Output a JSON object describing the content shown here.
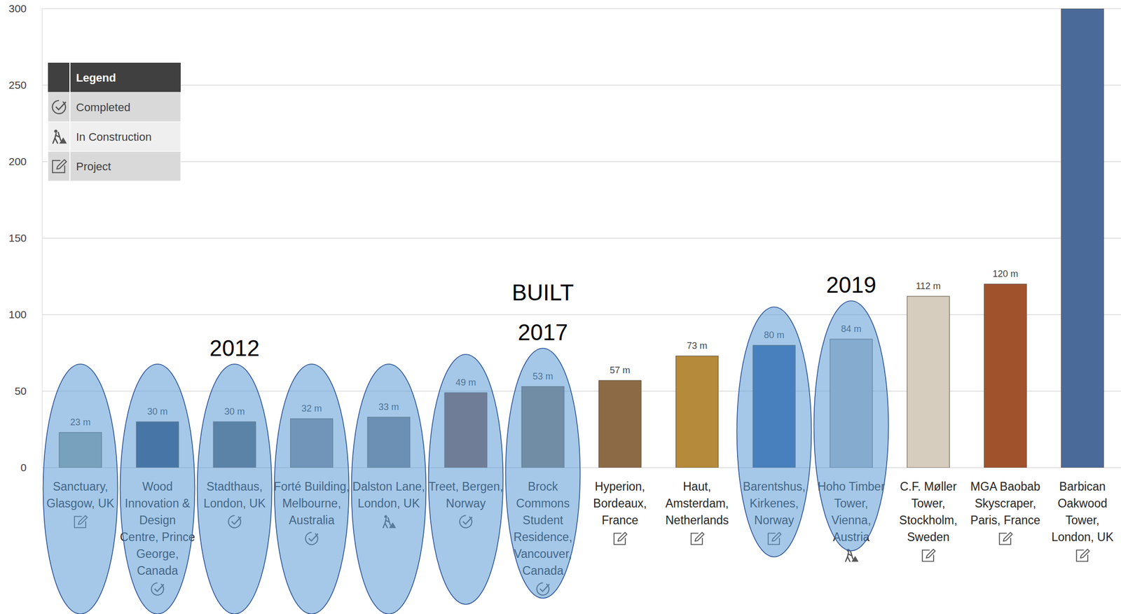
{
  "chart_data": {
    "type": "bar",
    "categories": [
      "Sanctuary, Glasgow, UK",
      "Wood Innovation & Design Centre, Prince George, Canada",
      "Stadthaus, London, UK",
      "Forté Building, Melbourne, Australia",
      "Dalston Lane, London, UK",
      "Treet, Bergen, Norway",
      "Brock Commons Student Residence, Vancouver, Canada",
      "Hyperion, Bordeaux, France",
      "Haut, Amsterdam, Netherlands",
      "Barentshus, Kirkenes, Norway",
      "Hoho Timber Tower, Vienna, Austria",
      "C.F. Møller Tower, Stockholm, Sweden",
      "MGA Baobab Skyscraper, Paris, France",
      "Barbican Oakwood Tower, London, UK"
    ],
    "values": [
      23,
      30,
      30,
      32,
      33,
      49,
      53,
      57,
      73,
      80,
      84,
      112,
      120,
      300
    ],
    "value_labels": [
      "23 m",
      "30 m",
      "30 m",
      "32 m",
      "33 m",
      "49 m",
      "53 m",
      "57 m",
      "73 m",
      "80 m",
      "84 m",
      "112 m",
      "120 m",
      null
    ],
    "colors": [
      "#9aa8a0",
      "#2f4a6e",
      "#5c6672",
      "#8a8e94",
      "#7f838a",
      "#8a5a4a",
      "#8c7b6b",
      "#8b6a45",
      "#b58a3a",
      "#2f5f9e",
      "#b9c0c8",
      "#d6cdbf",
      "#a0522d",
      "#4a6a9a"
    ],
    "status": [
      "Project",
      "Completed",
      "Completed",
      "Completed",
      "In Construction",
      "Completed",
      "Completed",
      "Project",
      "Project",
      "Project",
      "In Construction",
      "Project",
      "Project",
      "Project"
    ],
    "statuses": [
      "Completed",
      "In Construction",
      "Project"
    ],
    "legend_title": "Legend",
    "highlighted": [
      true,
      true,
      true,
      true,
      true,
      true,
      true,
      false,
      false,
      true,
      true,
      false,
      false,
      false
    ],
    "annotations": [
      {
        "text": "2012",
        "category": "Stadthaus, London, UK"
      },
      {
        "text": "BUILT",
        "category": "Brock Commons Student Residence, Vancouver, Canada"
      },
      {
        "text": "2017",
        "category": "Brock Commons Student Residence, Vancouver, Canada"
      },
      {
        "text": "2019",
        "category": "Hoho Timber Tower, Vienna, Austria"
      }
    ],
    "ylim": [
      0,
      300
    ],
    "yticks": [
      0,
      50,
      100,
      150,
      200,
      250,
      300
    ],
    "grid": true,
    "legend": "top-left",
    "data_labels": true
  }
}
